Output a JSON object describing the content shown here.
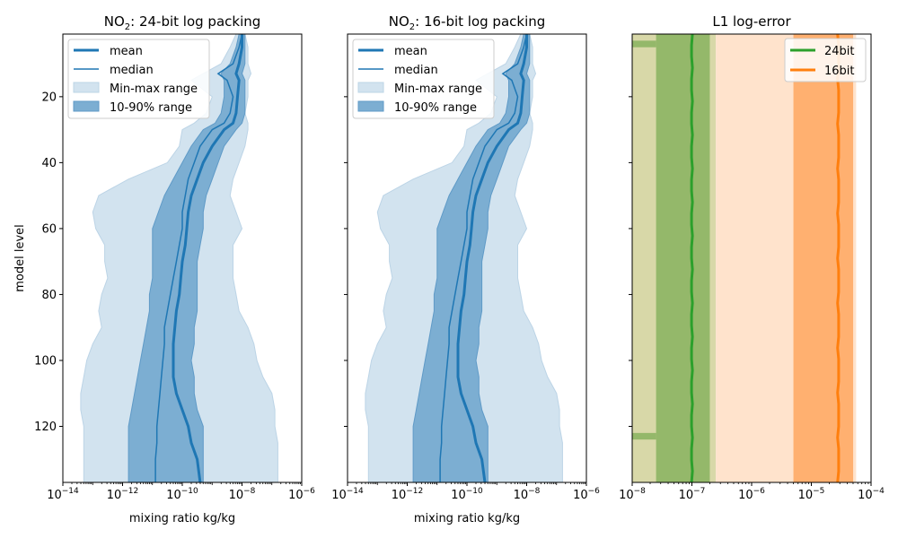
{
  "chart_data": [
    {
      "type": "area",
      "title_prefix": "NO",
      "title_sub": "2",
      "title_suffix": ": 24-bit log packing",
      "xlabel": "mixing ratio kg/kg",
      "ylabel": "model level",
      "xscale": "log",
      "xlim": [
        1e-14,
        1e-06
      ],
      "ylim": [
        137,
        1
      ],
      "xticks": [
        {
          "base": "10",
          "exp": "−14"
        },
        {
          "base": "10",
          "exp": "−12"
        },
        {
          "base": "10",
          "exp": "−10"
        },
        {
          "base": "10",
          "exp": "−8"
        },
        {
          "base": "10",
          "exp": "−6"
        }
      ],
      "yticks": [
        "20",
        "40",
        "60",
        "80",
        "100",
        "120"
      ],
      "legend": {
        "position": "upper left",
        "entries": [
          "mean",
          "median",
          "Min-max range",
          "10-90% range"
        ]
      },
      "levels": [
        1,
        5,
        10,
        13,
        15,
        20,
        25,
        28,
        30,
        35,
        40,
        45,
        50,
        55,
        60,
        65,
        70,
        75,
        80,
        85,
        90,
        95,
        100,
        105,
        110,
        115,
        120,
        125,
        130,
        137
      ],
      "series": [
        {
          "name": "mean",
          "log10_values": [
            -8.0,
            -8.0,
            -8.1,
            -8.2,
            -8.1,
            -8.15,
            -8.2,
            -8.3,
            -8.6,
            -9.0,
            -9.3,
            -9.5,
            -9.7,
            -9.8,
            -9.85,
            -9.9,
            -10.0,
            -10.05,
            -10.1,
            -10.2,
            -10.25,
            -10.3,
            -10.3,
            -10.3,
            -10.2,
            -10.0,
            -9.8,
            -9.7,
            -9.5,
            -9.4
          ]
        },
        {
          "name": "median",
          "log10_values": [
            -8.0,
            -8.1,
            -8.3,
            -8.8,
            -8.5,
            -8.3,
            -8.4,
            -8.6,
            -9.0,
            -9.4,
            -9.6,
            -9.8,
            -9.9,
            -10.0,
            -10.0,
            -10.1,
            -10.2,
            -10.3,
            -10.4,
            -10.5,
            -10.6,
            -10.6,
            -10.65,
            -10.7,
            -10.75,
            -10.8,
            -10.85,
            -10.85,
            -10.9,
            -10.9
          ]
        },
        {
          "name": "Min-max range",
          "log10_lower": [
            -8.2,
            -8.4,
            -8.7,
            -9.3,
            -9.7,
            -9.0,
            -9.2,
            -9.6,
            -10.0,
            -10.1,
            -10.5,
            -11.8,
            -12.8,
            -13.0,
            -12.9,
            -12.6,
            -12.6,
            -12.5,
            -12.7,
            -12.8,
            -12.7,
            -13.0,
            -13.2,
            -13.3,
            -13.4,
            -13.4,
            -13.3,
            -13.3,
            -13.3,
            -13.3
          ],
          "log10_upper": [
            -7.9,
            -7.8,
            -7.8,
            -7.7,
            -7.8,
            -7.8,
            -7.9,
            -7.8,
            -7.8,
            -7.9,
            -8.1,
            -8.3,
            -8.4,
            -8.2,
            -8.0,
            -8.3,
            -8.3,
            -8.3,
            -8.2,
            -8.1,
            -7.8,
            -7.6,
            -7.5,
            -7.3,
            -7.0,
            -6.9,
            -6.9,
            -6.8,
            -6.8,
            -6.8
          ]
        },
        {
          "name": "10-90% range",
          "log10_lower": [
            -8.1,
            -8.2,
            -8.4,
            -8.7,
            -8.6,
            -8.6,
            -8.7,
            -8.9,
            -9.3,
            -9.7,
            -10.0,
            -10.3,
            -10.6,
            -10.8,
            -11.0,
            -11.0,
            -11.0,
            -11.0,
            -11.1,
            -11.1,
            -11.2,
            -11.3,
            -11.4,
            -11.5,
            -11.6,
            -11.7,
            -11.8,
            -11.8,
            -11.8,
            -11.8
          ],
          "log10_upper": [
            -7.9,
            -7.9,
            -7.9,
            -8.0,
            -7.9,
            -7.9,
            -7.9,
            -8.0,
            -8.2,
            -8.6,
            -8.8,
            -9.0,
            -9.2,
            -9.3,
            -9.3,
            -9.4,
            -9.5,
            -9.5,
            -9.5,
            -9.5,
            -9.6,
            -9.6,
            -9.7,
            -9.6,
            -9.6,
            -9.5,
            -9.3,
            -9.3,
            -9.3,
            -9.3
          ]
        }
      ]
    },
    {
      "type": "area",
      "title_prefix": "NO",
      "title_sub": "2",
      "title_suffix": ": 16-bit log packing",
      "xlabel": "mixing ratio kg/kg",
      "ylabel": "",
      "xscale": "log",
      "xlim": [
        1e-14,
        1e-06
      ],
      "ylim": [
        137,
        1
      ],
      "xticks": [
        {
          "base": "10",
          "exp": "−14"
        },
        {
          "base": "10",
          "exp": "−12"
        },
        {
          "base": "10",
          "exp": "−10"
        },
        {
          "base": "10",
          "exp": "−8"
        },
        {
          "base": "10",
          "exp": "−6"
        }
      ],
      "yticks": [],
      "legend": {
        "position": "upper left",
        "entries": [
          "mean",
          "median",
          "Min-max range",
          "10-90% range"
        ]
      },
      "levels": [
        1,
        5,
        10,
        13,
        15,
        20,
        25,
        28,
        30,
        35,
        40,
        45,
        50,
        55,
        60,
        65,
        70,
        75,
        80,
        85,
        90,
        95,
        100,
        105,
        110,
        115,
        120,
        125,
        130,
        137
      ],
      "series": [
        {
          "name": "mean",
          "log10_values": [
            -8.0,
            -8.0,
            -8.1,
            -8.2,
            -8.1,
            -8.15,
            -8.2,
            -8.3,
            -8.6,
            -9.0,
            -9.3,
            -9.5,
            -9.7,
            -9.8,
            -9.85,
            -9.9,
            -10.0,
            -10.05,
            -10.1,
            -10.2,
            -10.25,
            -10.3,
            -10.3,
            -10.3,
            -10.2,
            -10.0,
            -9.8,
            -9.7,
            -9.5,
            -9.4
          ]
        },
        {
          "name": "median",
          "log10_values": [
            -8.0,
            -8.1,
            -8.3,
            -8.8,
            -8.5,
            -8.3,
            -8.4,
            -8.6,
            -9.0,
            -9.4,
            -9.6,
            -9.8,
            -9.9,
            -10.0,
            -10.0,
            -10.1,
            -10.2,
            -10.3,
            -10.4,
            -10.5,
            -10.6,
            -10.6,
            -10.65,
            -10.7,
            -10.75,
            -10.8,
            -10.85,
            -10.85,
            -10.9,
            -10.9
          ]
        },
        {
          "name": "Min-max range",
          "log10_lower": [
            -8.2,
            -8.4,
            -8.7,
            -9.3,
            -9.7,
            -9.0,
            -9.2,
            -9.6,
            -10.0,
            -10.1,
            -10.5,
            -11.8,
            -12.8,
            -13.0,
            -12.9,
            -12.6,
            -12.6,
            -12.5,
            -12.7,
            -12.8,
            -12.7,
            -13.0,
            -13.2,
            -13.3,
            -13.4,
            -13.4,
            -13.3,
            -13.3,
            -13.3,
            -13.3
          ],
          "log10_upper": [
            -7.9,
            -7.8,
            -7.8,
            -7.7,
            -7.8,
            -7.8,
            -7.9,
            -7.8,
            -7.8,
            -7.9,
            -8.1,
            -8.3,
            -8.4,
            -8.2,
            -8.0,
            -8.3,
            -8.3,
            -8.3,
            -8.2,
            -8.1,
            -7.8,
            -7.6,
            -7.5,
            -7.3,
            -7.0,
            -6.9,
            -6.9,
            -6.8,
            -6.8,
            -6.8
          ]
        },
        {
          "name": "10-90% range",
          "log10_lower": [
            -8.1,
            -8.2,
            -8.4,
            -8.7,
            -8.6,
            -8.6,
            -8.7,
            -8.9,
            -9.3,
            -9.7,
            -10.0,
            -10.3,
            -10.6,
            -10.8,
            -11.0,
            -11.0,
            -11.0,
            -11.0,
            -11.1,
            -11.1,
            -11.2,
            -11.3,
            -11.4,
            -11.5,
            -11.6,
            -11.7,
            -11.8,
            -11.8,
            -11.8,
            -11.8
          ],
          "log10_upper": [
            -7.9,
            -7.9,
            -7.9,
            -8.0,
            -7.9,
            -7.9,
            -7.9,
            -8.0,
            -8.2,
            -8.6,
            -8.8,
            -9.0,
            -9.2,
            -9.3,
            -9.3,
            -9.4,
            -9.5,
            -9.5,
            -9.5,
            -9.5,
            -9.6,
            -9.6,
            -9.7,
            -9.6,
            -9.6,
            -9.5,
            -9.3,
            -9.3,
            -9.3,
            -9.3
          ]
        }
      ]
    },
    {
      "type": "area",
      "title": "L1 log-error",
      "xlabel": "",
      "ylabel": "",
      "xscale": "log",
      "xlim": [
        1e-08,
        0.0001
      ],
      "ylim": [
        137,
        1
      ],
      "xticks": [
        {
          "base": "10",
          "exp": "−8"
        },
        {
          "base": "10",
          "exp": "−7"
        },
        {
          "base": "10",
          "exp": "−6"
        },
        {
          "base": "10",
          "exp": "−5"
        },
        {
          "base": "10",
          "exp": "−4"
        }
      ],
      "yticks": [],
      "legend": {
        "position": "upper right",
        "entries": [
          "24bit",
          "16bit"
        ]
      },
      "levels": [
        1,
        137
      ],
      "series": [
        {
          "name": "24bit",
          "log10_values": [
            -7.0,
            -7.0
          ],
          "log10_p10": [
            -7.6,
            -7.6
          ],
          "log10_p90": [
            -6.7,
            -6.7
          ],
          "log10_min": [
            -8.0,
            -8.0
          ],
          "log10_max": [
            -6.6,
            -6.6
          ]
        },
        {
          "name": "16bit",
          "log10_values": [
            -4.55,
            -4.55
          ],
          "log10_p10": [
            -5.3,
            -5.3
          ],
          "log10_p90": [
            -4.3,
            -4.3
          ],
          "log10_min": [
            -6.6,
            -6.6
          ],
          "log10_max": [
            -4.25,
            -4.25
          ]
        }
      ]
    }
  ],
  "colors": {
    "blue": "#1f77b4",
    "light_blue": "#d2e3ef",
    "mid_blue": "#7caed2",
    "green": "#2ca02c",
    "orange": "#ff7f0e",
    "light_orange": "#ffe3cc",
    "mid_orange": "#ffb070",
    "olive": "#d8d8a8",
    "olive_green": "#94b86a"
  }
}
